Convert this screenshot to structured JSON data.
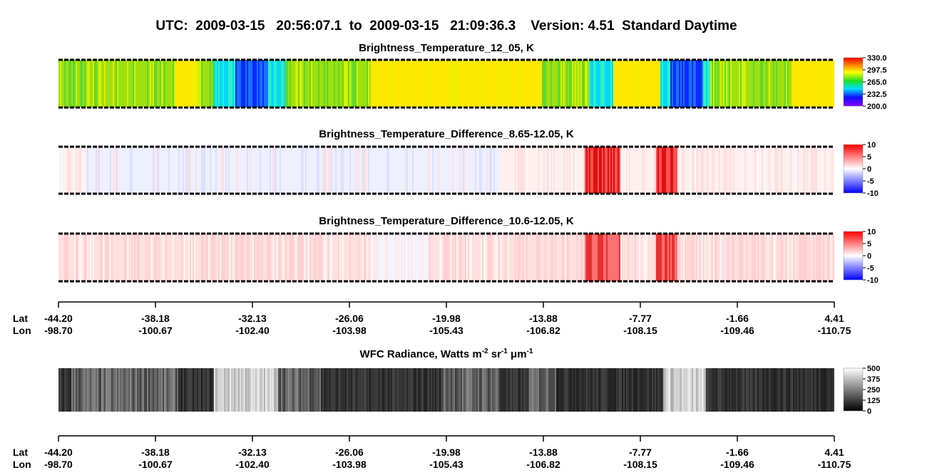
{
  "header": {
    "title": "UTC:  2009-03-15   20:56:07.1  to  2009-03-15   21:09:36.3    Version: 4.51  Standard Daytime"
  },
  "panels": [
    {
      "title": "Brightness_Temperature_12_05, K",
      "ticks": [
        {
          "value": 330,
          "label": "330.0"
        },
        {
          "value": 297.5,
          "label": "297.5"
        },
        {
          "value": 265,
          "label": "265.0"
        },
        {
          "value": 232.5,
          "label": "232.5"
        },
        {
          "value": 200,
          "label": "200.0"
        }
      ]
    },
    {
      "title": "Brightness_Temperature_Difference_8.65-12.05, K",
      "ticks": [
        10,
        5,
        0,
        -5,
        -10
      ]
    },
    {
      "title": "Brightness_Temperature_Difference_10.6-12.05, K",
      "ticks": [
        10,
        5,
        0,
        -5,
        -10
      ]
    },
    {
      "title": [
        "WFC Radiance, Watts m",
        "-2",
        " sr",
        "-1",
        " μm",
        "-1"
      ],
      "ticks": [
        500,
        375,
        250,
        125,
        0
      ]
    }
  ],
  "axes": [
    {
      "lat_label": "Lat",
      "lon_label": "Lon",
      "lat": [
        "-44.20",
        "-38.18",
        "-32.13",
        "-26.06",
        "-19.98",
        "-13.88",
        "-7.77",
        "-1.66",
        "4.41"
      ],
      "lon": [
        "-98.70",
        "-100.67",
        "-102.40",
        "-103.98",
        "-105.43",
        "-106.82",
        "-108.15",
        "-109.46",
        "-110.75"
      ]
    },
    {
      "lat_label": "Lat",
      "lon_label": "Lon",
      "lat": [
        "-44.20",
        "-38.18",
        "-32.13",
        "-26.06",
        "-19.98",
        "-13.88",
        "-7.77",
        "-1.66",
        "4.41"
      ],
      "lon": [
        "-98.70",
        "-100.67",
        "-102.40",
        "-103.98",
        "-105.43",
        "-106.82",
        "-108.15",
        "-109.46",
        "-110.75"
      ]
    }
  ]
}
